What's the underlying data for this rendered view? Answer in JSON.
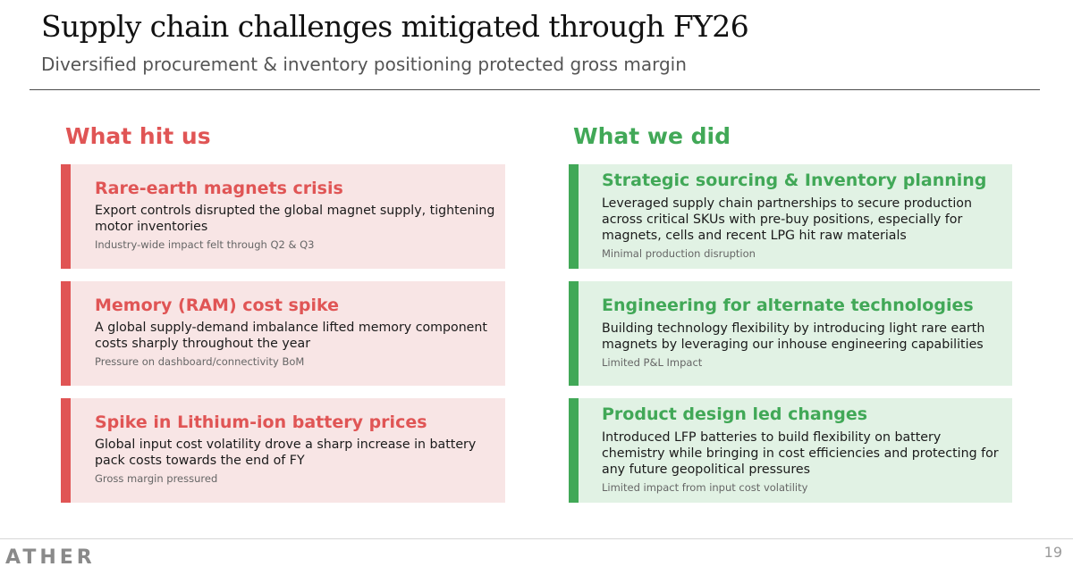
{
  "slide": {
    "title": "Supply chain challenges mitigated through FY26",
    "subtitle": "Diversified procurement & inventory positioning protected gross margin",
    "page_number": "19",
    "logo_text": "ATHER"
  },
  "left_column": {
    "heading": "What hit us",
    "accent_color": "#e05555",
    "cards": [
      {
        "title": "Rare-earth magnets crisis",
        "body": "Export controls disrupted the global magnet supply, tightening motor inventories",
        "note": "Industry-wide impact felt through Q2 & Q3"
      },
      {
        "title": "Memory (RAM) cost spike",
        "body": "A global supply-demand imbalance lifted memory component costs sharply throughout the year",
        "note": "Pressure on dashboard/connectivity BoM"
      },
      {
        "title": "Spike in Lithium-ion battery prices",
        "body": "Global input cost volatility drove a sharp increase in battery pack costs towards the end of FY",
        "note": "Gross margin pressured"
      }
    ]
  },
  "right_column": {
    "heading": "What we did",
    "accent_color": "#41a857",
    "cards": [
      {
        "title": "Strategic sourcing & Inventory planning",
        "body": "Leveraged supply chain partnerships to secure production across critical SKUs with pre-buy positions, especially for magnets, cells and recent LPG hit raw materials",
        "note": "Minimal production disruption"
      },
      {
        "title": "Engineering for alternate technologies",
        "body": "Building technology flexibility by introducing light rare earth magnets by leveraging our inhouse engineering capabilities",
        "note": "Limited P&L Impact"
      },
      {
        "title": "Product design led changes",
        "body": "Introduced LFP batteries to build flexibility on battery chemistry while bringing in cost efficiencies and protecting for any future geopolitical pressures",
        "note": "Limited impact from input cost volatility"
      }
    ]
  }
}
